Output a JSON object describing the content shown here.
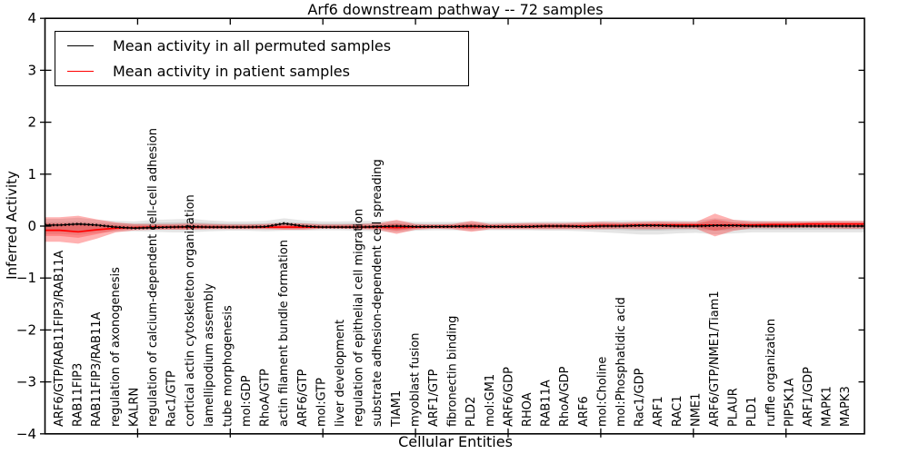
{
  "figure": {
    "title": "Arf6 downstream pathway -- 72 samples",
    "xlabel": "Cellular Entities",
    "ylabel": "Inferred Activity"
  },
  "chart_data": {
    "type": "line",
    "title": "Arf6 downstream pathway -- 72 samples",
    "xlabel": "Cellular Entities",
    "ylabel": "Inferred Activity",
    "ylim": [
      -4,
      4
    ],
    "yticks": [
      4,
      3,
      2,
      1,
      0,
      -1,
      -2,
      -3,
      -4
    ],
    "xlim": [
      0,
      44.25
    ],
    "xticks": [
      5,
      10,
      15,
      20,
      25,
      30,
      35,
      40
    ],
    "grid": false,
    "legend_position": "upper left",
    "categories": [
      "ARF6/GTP/RAB11FIP3/RAB11A",
      "RAB11FIP3",
      "RAB11FIP3/RAB11A",
      "regulation of axonogenesis",
      "KALRN",
      "regulation of calcium-dependent cell-cell adhesion",
      "Rac1/GTP",
      "cortical actin cytoskeleton organization",
      "lamellipodium assembly",
      "tube morphogenesis",
      "mol:GDP",
      "RhoA/GTP",
      "actin filament bundle formation",
      "ARF6/GTP",
      "mol:GTP",
      "liver development",
      "regulation of epithelial cell migration",
      "substrate adhesion-dependent cell spreading",
      "TIAM1",
      "myoblast fusion",
      "ARF1/GTP",
      "fibronectin binding",
      "PLD2",
      "mol:GM1",
      "ARF6/GDP",
      "RHOA",
      "RAB11A",
      "RhoA/GDP",
      "ARF6",
      "mol:Choline",
      "mol:Phosphatidic acid",
      "Rac1/GDP",
      "ARF1",
      "RAC1",
      "NME1",
      "ARF6/GTP/NME1/Tiam1",
      "PLAUR",
      "PLD1",
      "ruffle organization",
      "PIP5K1A",
      "ARF1/GDP",
      "MAPK1",
      "MAPK3"
    ],
    "series": [
      {
        "name": "Mean activity in all permuted samples",
        "color": "#000000",
        "values": [
          0.02,
          0.04,
          0.02,
          -0.02,
          -0.04,
          -0.03,
          -0.02,
          -0.01,
          -0.02,
          -0.02,
          -0.02,
          -0.01,
          0.05,
          0.0,
          -0.02,
          -0.02,
          -0.02,
          -0.01,
          0.0,
          -0.01,
          -0.01,
          -0.01,
          0.0,
          -0.01,
          -0.01,
          -0.01,
          0.0,
          0.0,
          -0.01,
          0.0,
          0.0,
          0.01,
          0.01,
          0.0,
          0.0,
          0.01,
          0.01,
          0.0,
          0.0,
          0.0,
          0.0,
          0.0,
          0.0
        ]
      },
      {
        "name": "Mean activity in patient samples",
        "color": "#ff0000",
        "values": [
          -0.08,
          -0.11,
          -0.07,
          -0.04,
          -0.03,
          -0.02,
          -0.02,
          -0.02,
          -0.02,
          -0.02,
          -0.02,
          -0.02,
          -0.02,
          -0.02,
          -0.02,
          -0.02,
          -0.02,
          -0.02,
          -0.03,
          -0.02,
          -0.01,
          -0.01,
          -0.01,
          -0.01,
          -0.01,
          -0.01,
          0.0,
          0.0,
          0.0,
          0.01,
          0.01,
          0.02,
          0.02,
          0.02,
          0.02,
          0.02,
          0.02,
          0.02,
          0.03,
          0.03,
          0.04,
          0.04,
          0.04
        ]
      }
    ],
    "bands": [
      {
        "name": "permuted-samples-band",
        "fill": "rgba(0,0,0,0.10)",
        "upper": [
          0.14,
          0.16,
          0.12,
          0.1,
          0.09,
          0.12,
          0.13,
          0.14,
          0.11,
          0.09,
          0.09,
          0.1,
          0.15,
          0.11,
          0.09,
          0.09,
          0.1,
          0.1,
          0.1,
          0.08,
          0.08,
          0.08,
          0.09,
          0.08,
          0.08,
          0.08,
          0.09,
          0.09,
          0.09,
          0.1,
          0.11,
          0.11,
          0.11,
          0.11,
          0.1,
          0.15,
          0.12,
          0.11,
          0.1,
          0.1,
          0.1,
          0.1,
          0.1
        ],
        "lower": [
          -0.15,
          -0.17,
          -0.13,
          -0.11,
          -0.1,
          -0.11,
          -0.12,
          -0.12,
          -0.1,
          -0.09,
          -0.09,
          -0.1,
          -0.09,
          -0.09,
          -0.08,
          -0.08,
          -0.09,
          -0.1,
          -0.12,
          -0.09,
          -0.08,
          -0.08,
          -0.09,
          -0.08,
          -0.08,
          -0.08,
          -0.09,
          -0.09,
          -0.1,
          -0.12,
          -0.14,
          -0.16,
          -0.16,
          -0.14,
          -0.13,
          -0.16,
          -0.14,
          -0.12,
          -0.12,
          -0.12,
          -0.12,
          -0.12,
          -0.12
        ]
      },
      {
        "name": "patient-samples-band",
        "fill": "rgba(255,0,0,0.30)",
        "upper": [
          0.17,
          0.2,
          0.13,
          0.07,
          0.04,
          0.04,
          0.04,
          0.05,
          0.04,
          0.03,
          0.03,
          0.04,
          0.06,
          0.05,
          0.03,
          0.03,
          0.04,
          0.05,
          0.12,
          0.04,
          0.03,
          0.04,
          0.1,
          0.04,
          0.05,
          0.06,
          0.06,
          0.06,
          0.07,
          0.08,
          0.07,
          0.08,
          0.09,
          0.08,
          0.08,
          0.24,
          0.12,
          0.09,
          0.09,
          0.09,
          0.09,
          0.1,
          0.1
        ],
        "lower": [
          -0.3,
          -0.34,
          -0.24,
          -0.12,
          -0.08,
          -0.07,
          -0.07,
          -0.07,
          -0.06,
          -0.06,
          -0.06,
          -0.06,
          -0.07,
          -0.07,
          -0.05,
          -0.05,
          -0.06,
          -0.07,
          -0.15,
          -0.07,
          -0.05,
          -0.06,
          -0.11,
          -0.06,
          -0.06,
          -0.06,
          -0.06,
          -0.06,
          -0.06,
          -0.06,
          -0.05,
          -0.06,
          -0.06,
          -0.05,
          -0.05,
          -0.2,
          -0.09,
          -0.04,
          -0.04,
          -0.04,
          -0.03,
          -0.04,
          -0.05
        ]
      }
    ]
  }
}
